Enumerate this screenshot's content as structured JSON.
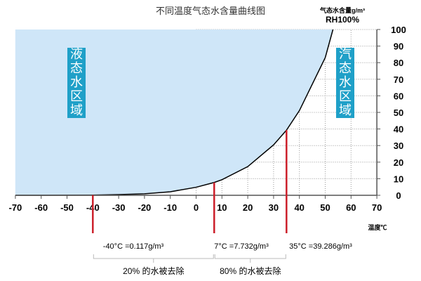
{
  "chart_data": {
    "type": "area",
    "title": "不同温度气态水含量曲线图",
    "ylabel": "气态水含量g/m³",
    "ylabel2": "RH100%",
    "xlabel": "温度℃",
    "xlim": [
      -70,
      70
    ],
    "ylim": [
      0,
      100
    ],
    "xticks": [
      -70,
      -60,
      -50,
      -40,
      -30,
      -20,
      -10,
      0,
      10,
      20,
      30,
      40,
      50,
      60,
      70
    ],
    "yticks": [
      0,
      10,
      20,
      30,
      40,
      50,
      60,
      70,
      80,
      90,
      100
    ],
    "grid": true,
    "series": [
      {
        "x": [
          -70,
          -60,
          -50,
          -40,
          -30,
          -20,
          -10,
          0,
          7,
          10,
          20,
          30,
          35,
          40,
          50,
          53
        ],
        "y": [
          0.003,
          0.011,
          0.04,
          0.117,
          0.45,
          0.88,
          2.14,
          4.85,
          7.732,
          9.4,
          17.3,
          30.4,
          39.286,
          51.1,
          83.0,
          100
        ]
      }
    ],
    "region_labels": {
      "liquid": "液态水区域",
      "vapor": "汽态水区域"
    },
    "markers": [
      {
        "x": -40,
        "label": "-40°C =0.117g/m³"
      },
      {
        "x": 7,
        "label": "7°C =7.732g/m³"
      },
      {
        "x": 35,
        "label": "35°C =39.286g/m³"
      }
    ],
    "braces": [
      {
        "from": -40,
        "to": 7,
        "label": "20% 的水被去除"
      },
      {
        "from": 7,
        "to": 35,
        "label": "80% 的水被去除"
      }
    ],
    "colors": {
      "fill": "#cfe6f8",
      "marker": "#cc1f2a",
      "label_box": "#1fa0c8",
      "curve": "#000000"
    }
  }
}
